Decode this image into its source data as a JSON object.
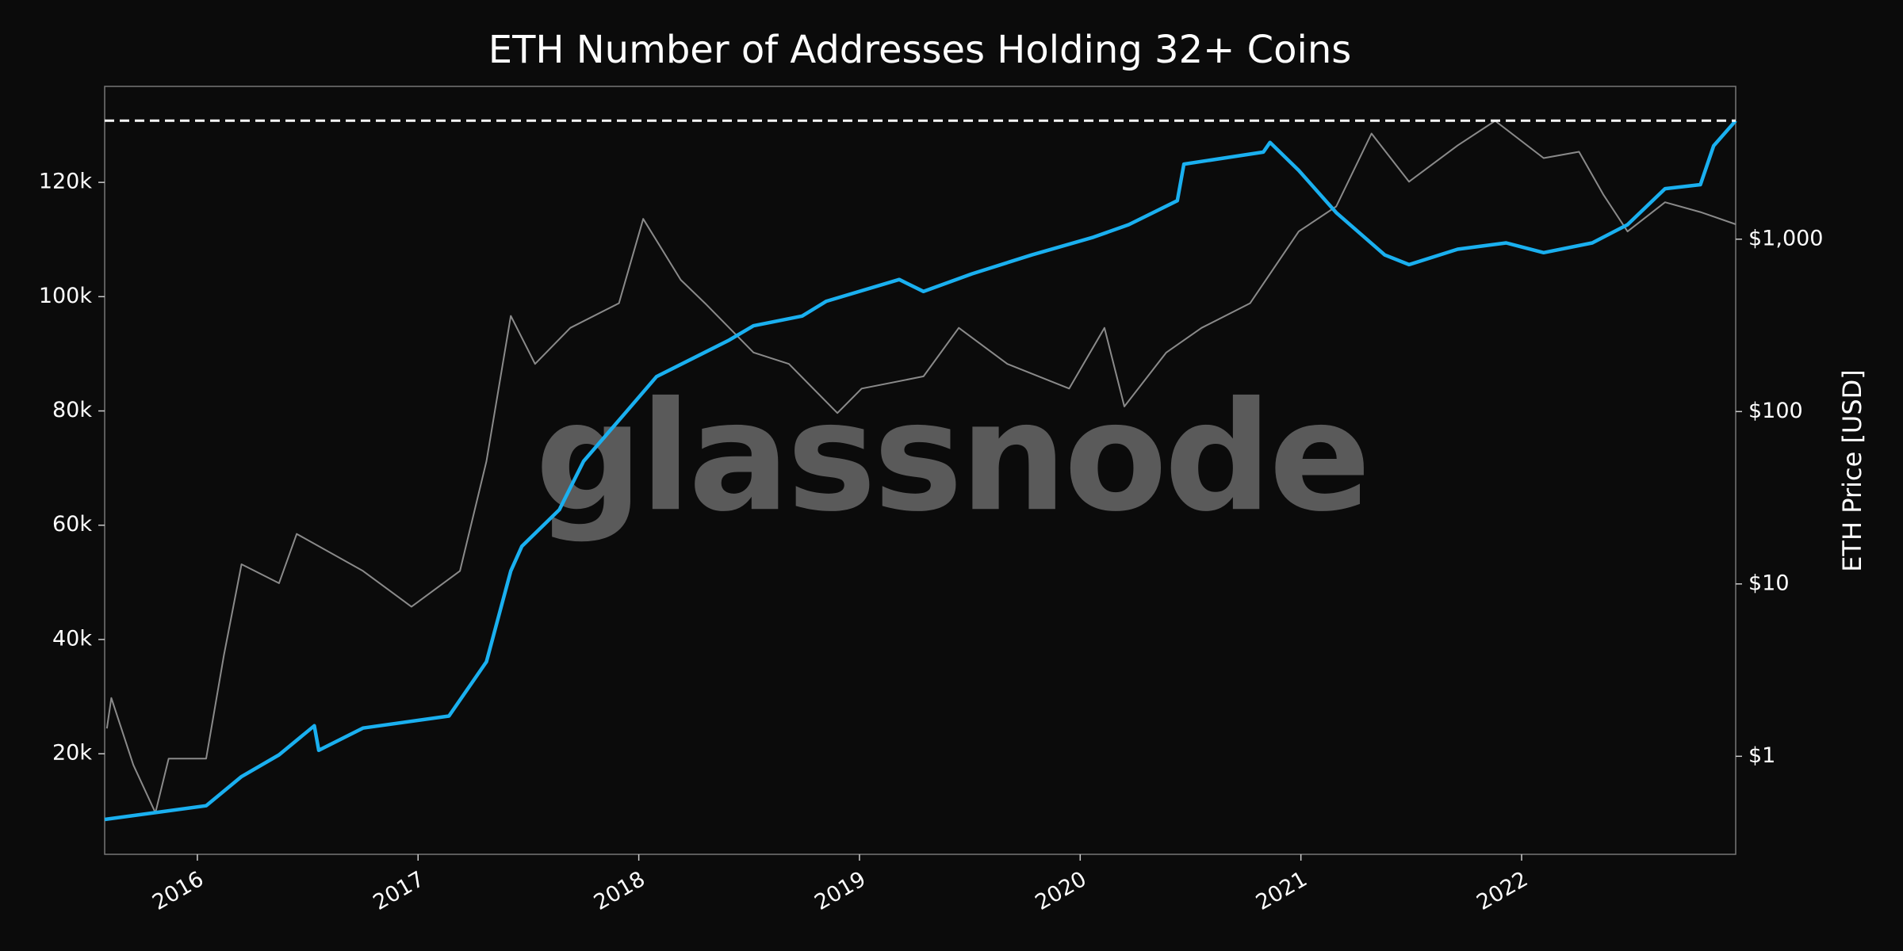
{
  "chart_data": {
    "type": "line",
    "title": "ETH Number of Addresses Holding 32+ Coins",
    "y2label": "ETH Price [USD]",
    "watermark": "glassnode",
    "xlim": [
      2015.58,
      2022.97
    ],
    "xticks": [
      2016,
      2017,
      2018,
      2019,
      2020,
      2021,
      2022
    ],
    "ylim": [
      2400,
      136800
    ],
    "yticks": [
      {
        "value": 20000,
        "label": "20k"
      },
      {
        "value": 40000,
        "label": "40k"
      },
      {
        "value": 60000,
        "label": "60k"
      },
      {
        "value": 80000,
        "label": "80k"
      },
      {
        "value": 100000,
        "label": "100k"
      },
      {
        "value": 120000,
        "label": "120k"
      }
    ],
    "y2lim": [
      0.27,
      7700
    ],
    "y2scale": "log",
    "y2ticks": [
      {
        "value": 1,
        "label": "$1"
      },
      {
        "value": 10,
        "label": "$10"
      },
      {
        "value": 100,
        "label": "$100"
      },
      {
        "value": 1000,
        "label": "$1,000"
      }
    ],
    "reference_line": {
      "value": 130800,
      "color": "#ffffff",
      "style": "dashed"
    },
    "series": [
      {
        "color": "#8a8a8a",
        "axis": "y2",
        "x": [
          2015.59,
          2015.61,
          2015.71,
          2015.81,
          2015.87,
          2016.04,
          2016.12,
          2016.2,
          2016.37,
          2016.45,
          2016.75,
          2016.97,
          2017.19,
          2017.31,
          2017.42,
          2017.53,
          2017.69,
          2017.91,
          2018.02,
          2018.19,
          2018.3,
          2018.52,
          2018.68,
          2018.9,
          2019.01,
          2019.29,
          2019.45,
          2019.67,
          2019.95,
          2020.11,
          2020.2,
          2020.39,
          2020.55,
          2020.77,
          2020.99,
          2021.16,
          2021.32,
          2021.49,
          2021.71,
          2021.88,
          2022.1,
          2022.26,
          2022.37,
          2022.48,
          2022.65,
          2022.81,
          2022.97
        ],
        "values": [
          1.45,
          2.18,
          0.89,
          0.47,
          0.97,
          0.97,
          3.84,
          13,
          10.1,
          19.5,
          11.9,
          7.37,
          11.9,
          51.5,
          359,
          189,
          306,
          425,
          1311,
          581,
          425,
          220,
          189,
          98,
          136,
          160,
          306,
          189,
          136,
          306,
          107,
          220,
          306,
          425,
          1108,
          1549,
          4100,
          2154,
          3494,
          4856,
          2954,
          3215,
          1818,
          1108,
          1638,
          1437,
          1220
        ]
      },
      {
        "color": "#1ab0f0",
        "x": [
          2015.58,
          2016.04,
          2016.2,
          2016.37,
          2016.53,
          2016.55,
          2016.75,
          2017.14,
          2017.31,
          2017.42,
          2017.47,
          2017.64,
          2017.75,
          2017.94,
          2018.08,
          2018.41,
          2018.52,
          2018.74,
          2018.85,
          2019.18,
          2019.29,
          2019.51,
          2019.78,
          2020.06,
          2020.22,
          2020.44,
          2020.47,
          2020.83,
          2020.86,
          2020.99,
          2021.16,
          2021.38,
          2021.49,
          2021.71,
          2021.93,
          2022.1,
          2022.32,
          2022.48,
          2022.65,
          2022.81,
          2022.87,
          2022.97
        ],
        "values": [
          8500,
          10900,
          16000,
          19800,
          24900,
          20600,
          24500,
          26600,
          36100,
          52000,
          56300,
          62700,
          71200,
          79700,
          86000,
          92400,
          94900,
          96600,
          99200,
          103000,
          100900,
          104000,
          107300,
          110400,
          112600,
          116800,
          123200,
          125300,
          127000,
          122100,
          114700,
          107300,
          105600,
          108300,
          109400,
          107700,
          109400,
          112600,
          118900,
          119600,
          126400,
          130800
        ]
      }
    ]
  }
}
